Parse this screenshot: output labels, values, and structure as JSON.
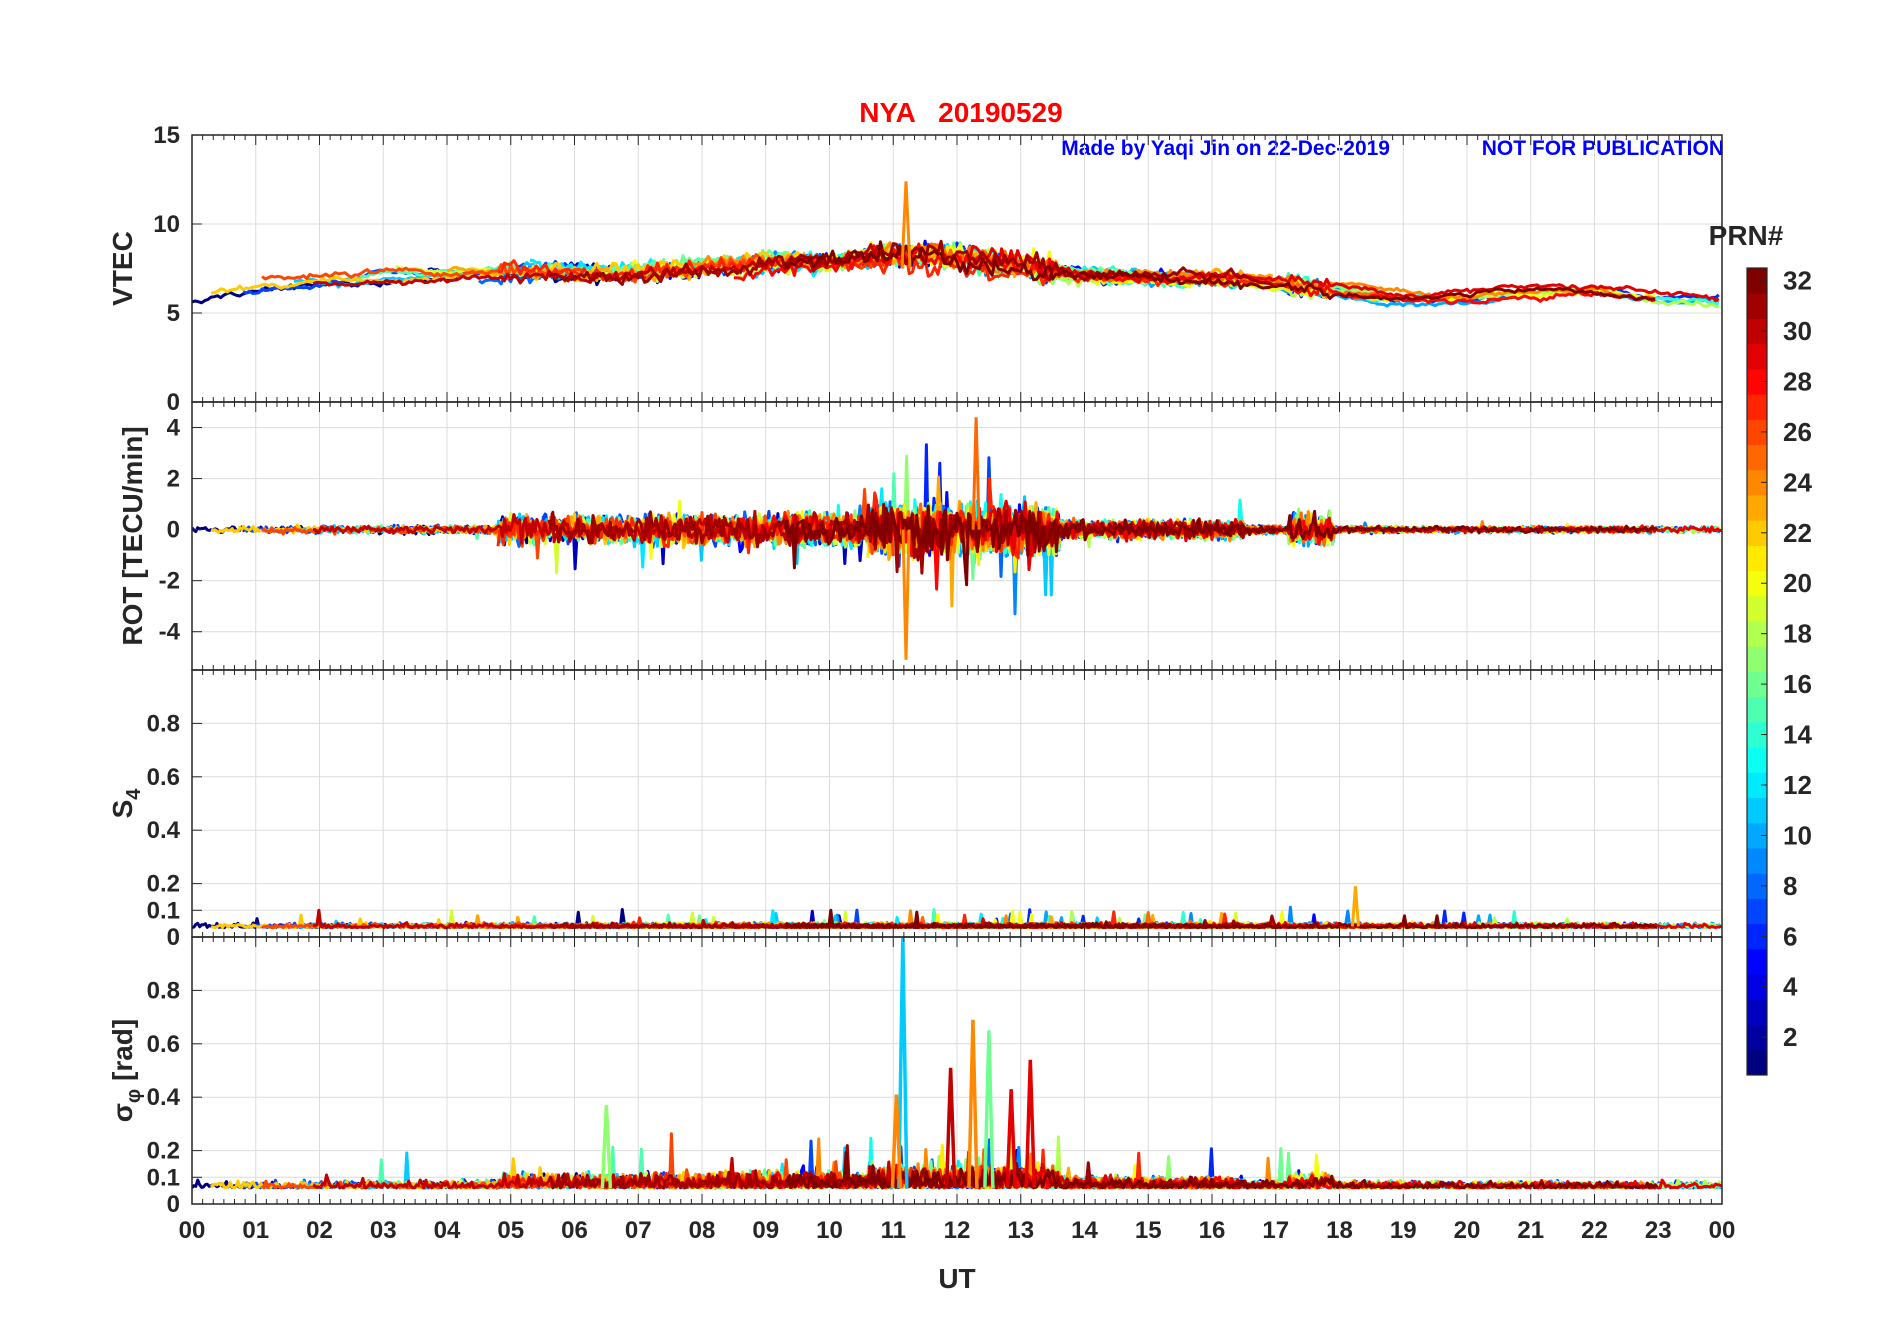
{
  "title": "NYA   20190529",
  "banner": {
    "made_by": "Made by Yaqi Jin on 22-Dec-2019",
    "notice": "NOT FOR PUBLICATION"
  },
  "colors": {
    "title": "#ff0000",
    "banner": "#0000ff",
    "colormap": "jet"
  },
  "chart_data": [
    {
      "type": "line",
      "ylabel": "VTEC",
      "ylim": [
        0,
        15
      ],
      "yticks": [
        0,
        5,
        10,
        15
      ],
      "trend": {
        "hours": [
          0,
          1,
          2,
          3,
          4,
          5,
          6,
          7,
          8,
          9,
          10,
          11,
          12,
          13,
          14,
          15,
          16,
          17,
          18,
          19,
          20,
          21,
          22,
          23,
          24
        ],
        "values": [
          6.2,
          6.6,
          6.9,
          7.1,
          7.0,
          7.2,
          7.3,
          7.2,
          7.5,
          7.9,
          7.9,
          8.3,
          8.1,
          7.6,
          7.1,
          7.0,
          6.9,
          6.6,
          6.2,
          5.8,
          5.8,
          6.1,
          6.2,
          5.7,
          5.6
        ]
      },
      "peak": {
        "x": 11.2,
        "y": 12.4
      }
    },
    {
      "type": "line",
      "ylabel": "ROT [TECU/min]",
      "ylim": [
        -5.5,
        5
      ],
      "yticks": [
        -4,
        -2,
        0,
        2,
        4
      ],
      "extremes": {
        "max": 4.4,
        "min": -5.1
      }
    },
    {
      "type": "line",
      "ylabel": "S",
      "ylabel_sub": "4",
      "ylim": [
        0,
        1
      ],
      "yticks": [
        0,
        0.1,
        0.2,
        0.4,
        0.6,
        0.8
      ],
      "ytick_labels": [
        "0",
        "0.1",
        "0.2",
        "0.4",
        "0.6",
        "0.8"
      ],
      "max": {
        "x": 18.25,
        "y": 0.19
      }
    },
    {
      "type": "line",
      "ylabel": "σ",
      "ylabel_sub": "φ",
      "ylabel_rest": " [rad]",
      "ylim": [
        0,
        1
      ],
      "yticks": [
        0,
        0.1,
        0.2,
        0.4,
        0.6,
        0.8
      ],
      "ytick_labels": [
        "0",
        "0.1",
        "0.2",
        "0.4",
        "0.6",
        "0.8"
      ],
      "spikes": [
        {
          "x": 11.15,
          "y": 1.0,
          "prn": 11
        },
        {
          "x": 12.25,
          "y": 0.69,
          "prn": 24
        },
        {
          "x": 12.5,
          "y": 0.65,
          "prn": 16
        },
        {
          "x": 13.15,
          "y": 0.54,
          "prn": 29
        },
        {
          "x": 11.9,
          "y": 0.51,
          "prn": 30
        },
        {
          "x": 12.85,
          "y": 0.43,
          "prn": 29
        },
        {
          "x": 11.05,
          "y": 0.41,
          "prn": 24
        },
        {
          "x": 6.5,
          "y": 0.37,
          "prn": 17
        }
      ]
    }
  ],
  "x_axis": {
    "label": "UT",
    "ticks": [
      "00",
      "01",
      "02",
      "03",
      "04",
      "05",
      "06",
      "07",
      "08",
      "09",
      "10",
      "11",
      "12",
      "13",
      "14",
      "15",
      "16",
      "17",
      "18",
      "19",
      "20",
      "21",
      "22",
      "23",
      "00"
    ],
    "range_hours": [
      0,
      24
    ]
  },
  "colorbar": {
    "label": "PRN#",
    "range": [
      1,
      32
    ],
    "ticks": [
      "2",
      "4",
      "6",
      "8",
      "10",
      "12",
      "14",
      "16",
      "18",
      "20",
      "22",
      "24",
      "26",
      "28",
      "30",
      "32"
    ]
  }
}
